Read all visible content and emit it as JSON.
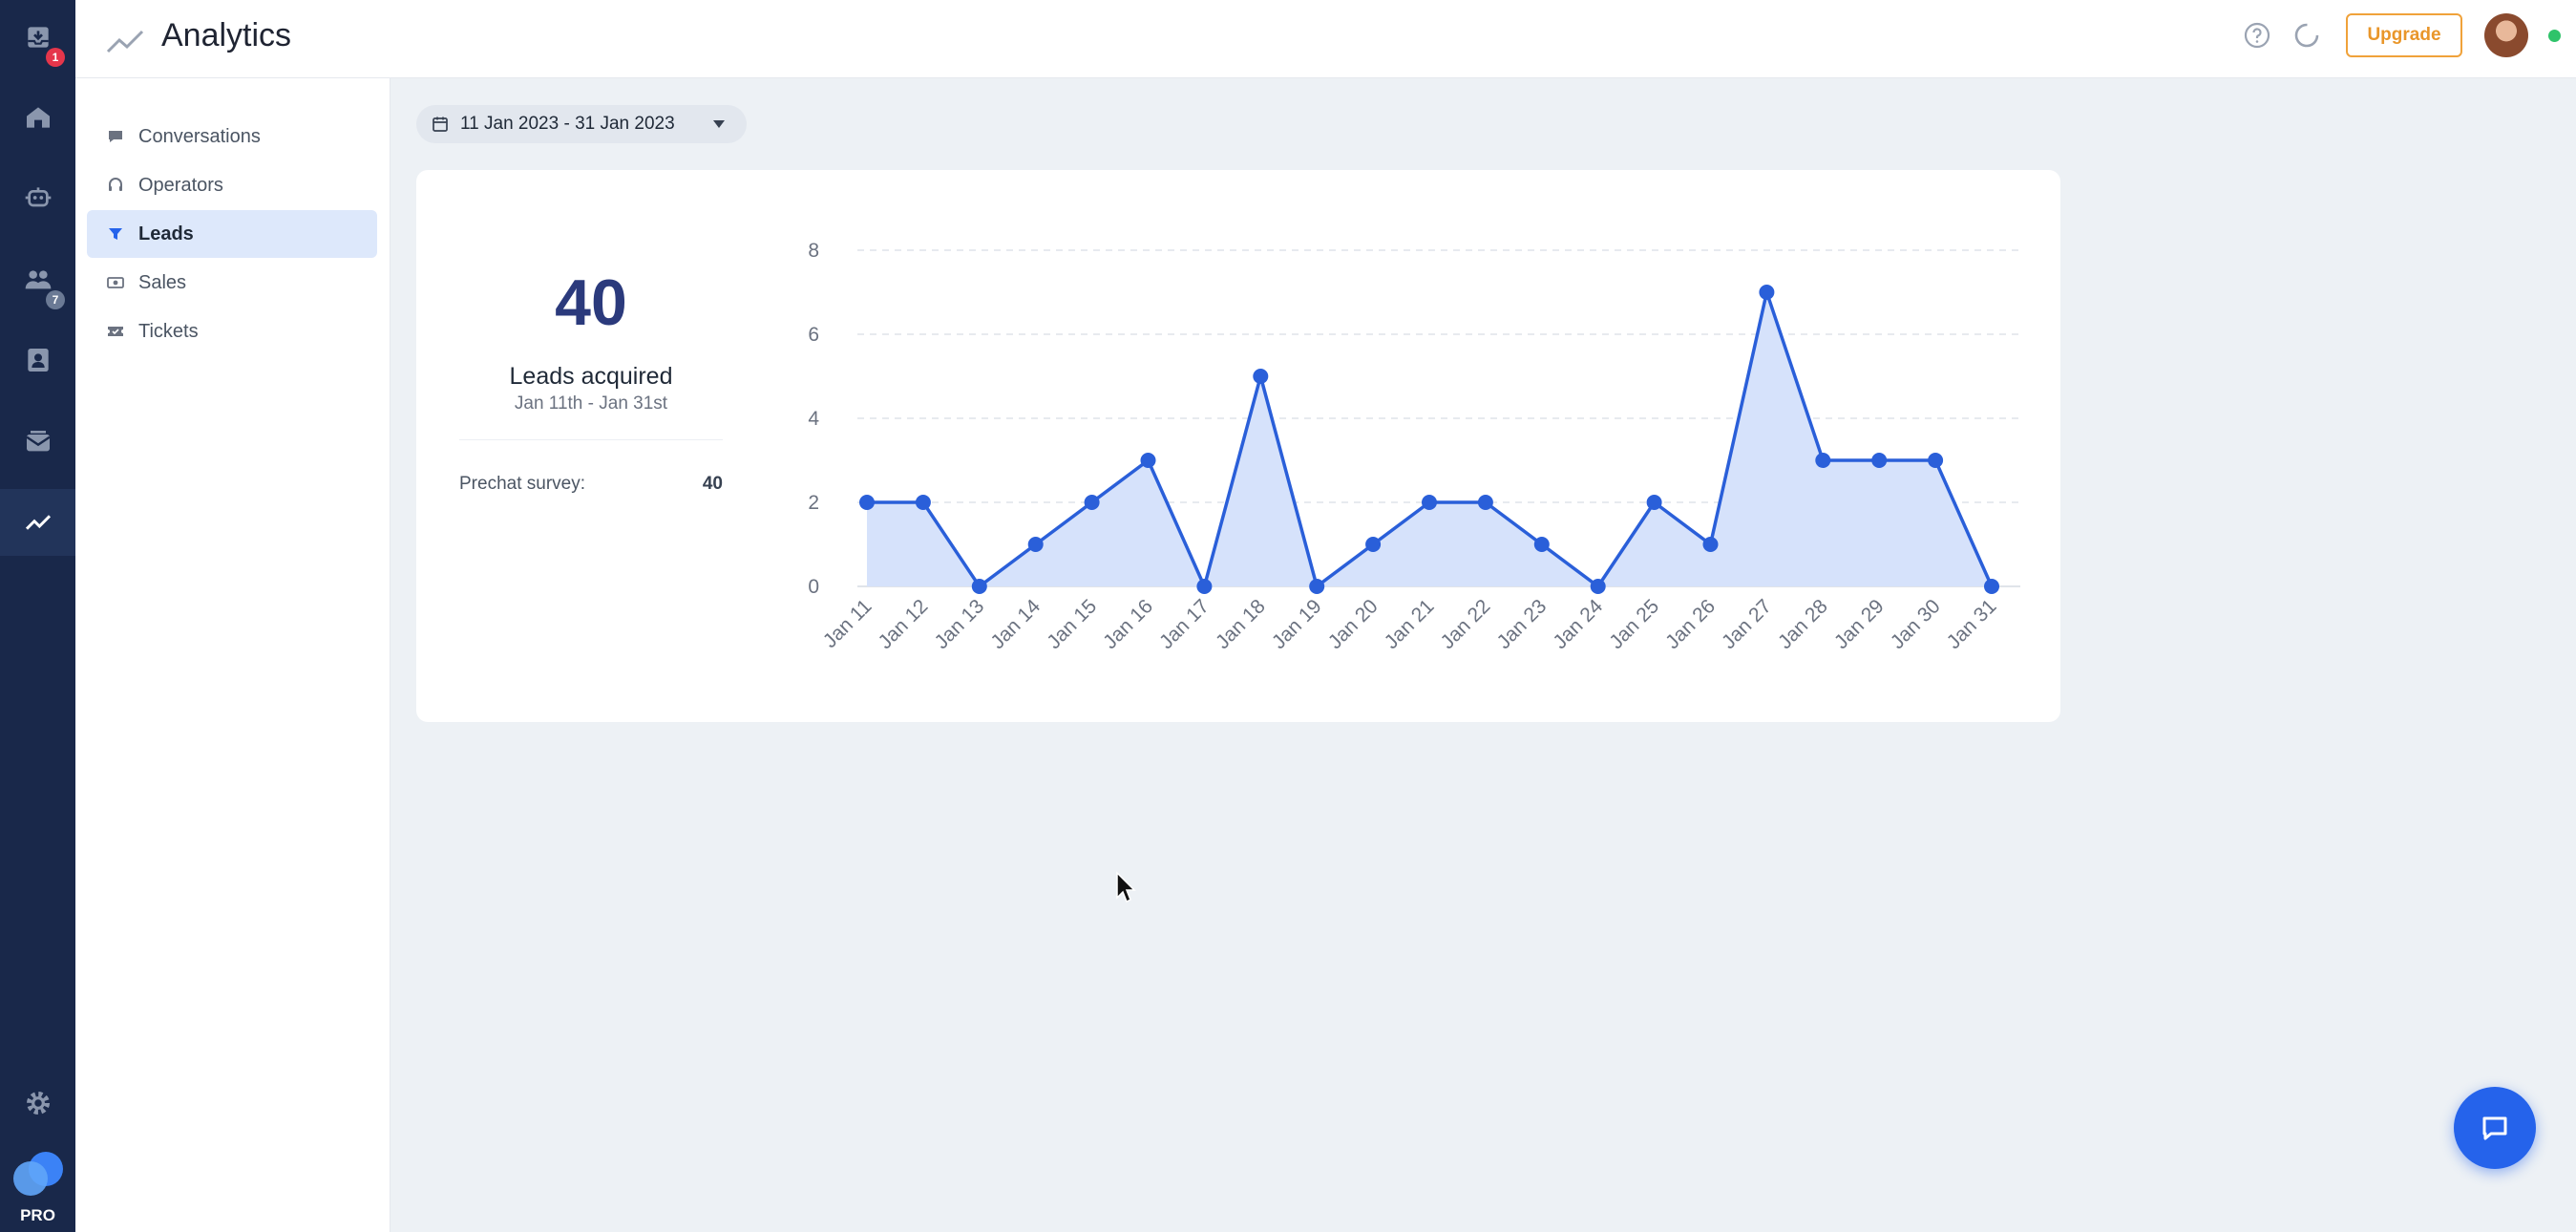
{
  "rail": {
    "badges": {
      "inbox": "1",
      "team": "7"
    },
    "pro_label": "PRO"
  },
  "header": {
    "title": "Analytics",
    "upgrade_label": "Upgrade"
  },
  "subnav": {
    "items": [
      {
        "label": "Conversations",
        "icon": "chat-bubble-icon",
        "active": false
      },
      {
        "label": "Operators",
        "icon": "headset-icon",
        "active": false
      },
      {
        "label": "Leads",
        "icon": "funnel-icon",
        "active": true
      },
      {
        "label": "Sales",
        "icon": "cash-icon",
        "active": false
      },
      {
        "label": "Tickets",
        "icon": "ticket-icon",
        "active": false
      }
    ]
  },
  "date_range": {
    "label": "11 Jan 2023 - 31 Jan 2023"
  },
  "summary": {
    "total": "40",
    "label": "Leads acquired",
    "range": "Jan 11th - Jan 31st",
    "breakdown": [
      {
        "label": "Prechat survey:",
        "value": "40"
      }
    ]
  },
  "colors": {
    "accent": "#2563eb",
    "line": "#2a5fd9",
    "area": "#d6e2fb",
    "rail": "#19284a",
    "upgrade": "#f0a23a"
  },
  "chart_data": {
    "type": "area",
    "categories": [
      "Jan 11",
      "Jan 12",
      "Jan 13",
      "Jan 14",
      "Jan 15",
      "Jan 16",
      "Jan 17",
      "Jan 18",
      "Jan 19",
      "Jan 20",
      "Jan 21",
      "Jan 22",
      "Jan 23",
      "Jan 24",
      "Jan 25",
      "Jan 26",
      "Jan 27",
      "Jan 28",
      "Jan 29",
      "Jan 30",
      "Jan 31"
    ],
    "values": [
      2,
      2,
      0,
      1,
      2,
      3,
      0,
      5,
      0,
      1,
      2,
      2,
      1,
      0,
      2,
      1,
      7,
      3,
      3,
      3,
      0
    ],
    "y_ticks": [
      0,
      2,
      4,
      6,
      8
    ],
    "ylim": [
      0,
      8
    ],
    "grid": true,
    "legend": "none"
  }
}
